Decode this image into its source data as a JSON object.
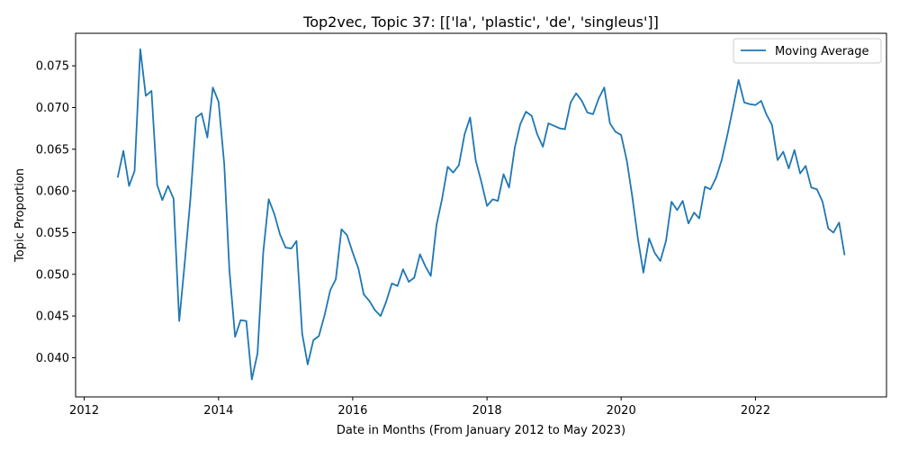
{
  "chart_data": {
    "type": "line",
    "title": "Top2vec, Topic 37: [['la', 'plastic', 'de', 'singleus']]",
    "xlabel": "Date in Months (From January 2012 to May 2023)",
    "ylabel": "Topic Proportion",
    "xlim": [
      "2011-11-15",
      "2023-12-15"
    ],
    "ylim": [
      0.0353,
      0.0789
    ],
    "x_ticks": [
      "2012",
      "2014",
      "2016",
      "2018",
      "2020",
      "2022"
    ],
    "y_ticks": [
      "0.040",
      "0.045",
      "0.050",
      "0.055",
      "0.060",
      "0.065",
      "0.070",
      "0.075"
    ],
    "grid": false,
    "legend": {
      "position": "top-right"
    },
    "series": [
      {
        "name": "Moving Average",
        "color": "#1f77b4",
        "x": [
          "2012-07",
          "2012-08",
          "2012-09",
          "2012-10",
          "2012-11",
          "2012-12",
          "2013-01",
          "2013-02",
          "2013-03",
          "2013-04",
          "2013-05",
          "2013-06",
          "2013-07",
          "2013-08",
          "2013-09",
          "2013-10",
          "2013-11",
          "2013-12",
          "2014-01",
          "2014-02",
          "2014-03",
          "2014-04",
          "2014-05",
          "2014-06",
          "2014-07",
          "2014-08",
          "2014-09",
          "2014-10",
          "2014-11",
          "2014-12",
          "2015-01",
          "2015-02",
          "2015-03",
          "2015-04",
          "2015-05",
          "2015-06",
          "2015-07",
          "2015-08",
          "2015-09",
          "2015-10",
          "2015-11",
          "2015-12",
          "2016-01",
          "2016-02",
          "2016-03",
          "2016-04",
          "2016-05",
          "2016-06",
          "2016-07",
          "2016-08",
          "2016-09",
          "2016-10",
          "2016-11",
          "2016-12",
          "2017-01",
          "2017-02",
          "2017-03",
          "2017-04",
          "2017-05",
          "2017-06",
          "2017-07",
          "2017-08",
          "2017-09",
          "2017-10",
          "2017-11",
          "2017-12",
          "2018-01",
          "2018-02",
          "2018-03",
          "2018-04",
          "2018-05",
          "2018-06",
          "2018-07",
          "2018-08",
          "2018-09",
          "2018-10",
          "2018-11",
          "2018-12",
          "2019-01",
          "2019-02",
          "2019-03",
          "2019-04",
          "2019-05",
          "2019-06",
          "2019-07",
          "2019-08",
          "2019-09",
          "2019-10",
          "2019-11",
          "2019-12",
          "2020-01",
          "2020-02",
          "2020-03",
          "2020-04",
          "2020-05",
          "2020-06",
          "2020-07",
          "2020-08",
          "2020-09",
          "2020-10",
          "2020-11",
          "2020-12",
          "2021-01",
          "2021-02",
          "2021-03",
          "2021-04",
          "2021-05",
          "2021-06",
          "2021-07",
          "2021-08",
          "2021-09",
          "2021-10",
          "2021-11",
          "2021-12",
          "2022-01",
          "2022-02",
          "2022-03",
          "2022-04",
          "2022-05",
          "2022-06",
          "2022-07",
          "2022-08",
          "2022-09",
          "2022-10",
          "2022-11",
          "2022-12",
          "2023-01",
          "2023-02",
          "2023-03",
          "2023-04",
          "2023-05"
        ],
        "values": [
          0.0616,
          0.0648,
          0.0606,
          0.0624,
          0.077,
          0.0714,
          0.072,
          0.0607,
          0.0589,
          0.0606,
          0.0591,
          0.0444,
          0.0514,
          0.0591,
          0.0688,
          0.0693,
          0.0664,
          0.0724,
          0.0707,
          0.0632,
          0.0505,
          0.0425,
          0.0445,
          0.0444,
          0.0374,
          0.0405,
          0.0526,
          0.059,
          0.0572,
          0.0548,
          0.0532,
          0.0531,
          0.054,
          0.0429,
          0.0392,
          0.0421,
          0.0426,
          0.0451,
          0.0481,
          0.0494,
          0.0554,
          0.0547,
          0.0526,
          0.0507,
          0.0476,
          0.0468,
          0.0457,
          0.045,
          0.0467,
          0.0489,
          0.0486,
          0.0506,
          0.0491,
          0.0496,
          0.0524,
          0.0509,
          0.0498,
          0.0559,
          0.059,
          0.0629,
          0.0622,
          0.0631,
          0.0668,
          0.0688,
          0.0636,
          0.0611,
          0.0582,
          0.059,
          0.0588,
          0.062,
          0.0604,
          0.0652,
          0.068,
          0.0695,
          0.069,
          0.0668,
          0.0653,
          0.0681,
          0.0678,
          0.0675,
          0.0674,
          0.0706,
          0.0717,
          0.0708,
          0.0694,
          0.0692,
          0.0711,
          0.0724,
          0.0681,
          0.0671,
          0.0667,
          0.0636,
          0.0594,
          0.0543,
          0.0502,
          0.0543,
          0.0526,
          0.0516,
          0.054,
          0.0587,
          0.0577,
          0.0588,
          0.0561,
          0.0574,
          0.0567,
          0.0605,
          0.0602,
          0.0616,
          0.0637,
          0.0667,
          0.07,
          0.0733,
          0.0706,
          0.0704,
          0.0703,
          0.0708,
          0.0692,
          0.0679,
          0.0637,
          0.0647,
          0.0627,
          0.0649,
          0.0621,
          0.063,
          0.0604,
          0.0602,
          0.0587,
          0.0555,
          0.055,
          0.0562,
          0.0523
        ]
      }
    ]
  }
}
